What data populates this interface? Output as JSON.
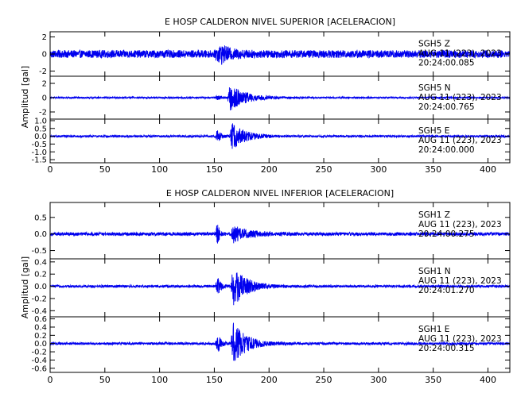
{
  "chart_data": [
    {
      "type": "line",
      "title": "E HOSP CALDERON NIVEL SUPERIOR [ACELERACION]",
      "ylabel": "Amplitud [gal]",
      "x_ticks": [
        "0",
        "50",
        "100",
        "150",
        "200",
        "250",
        "300",
        "350",
        "400"
      ],
      "xlim": [
        0,
        420
      ],
      "series": [
        {
          "name": "SGH5 Z",
          "date": "AUG 11 (223), 2023",
          "time": "20:24:00.085",
          "ylim": [
            -2.6,
            2.6
          ],
          "y_ticks": [
            "2",
            "0",
            "-2"
          ],
          "noise": 0.45,
          "events": [
            {
              "t": 151,
              "amp": 2.4,
              "decay": 2,
              "dur": 4
            },
            {
              "t": 154,
              "amp": 0.9,
              "decay": 10,
              "dur": 30
            }
          ]
        },
        {
          "name": "SGH5 N",
          "date": "AUG 11 (223), 2023",
          "time": "20:24:00.765",
          "ylim": [
            -3,
            3
          ],
          "y_ticks": [
            "2",
            "0",
            "-2"
          ],
          "noise": 0.12,
          "events": [
            {
              "t": 151,
              "amp": 0.6,
              "decay": 3,
              "dur": 6
            },
            {
              "t": 162,
              "amp": 2.1,
              "decay": 14,
              "dur": 60
            }
          ]
        },
        {
          "name": "SGH5 E",
          "date": "AUG 11 (223), 2023",
          "time": "20:24:00.000",
          "ylim": [
            -1.7,
            1.1
          ],
          "y_ticks": [
            "1.0",
            "0.5",
            "0.0",
            "-0.5",
            "-1.0",
            "-1.5"
          ],
          "noise": 0.07,
          "events": [
            {
              "t": 151,
              "amp": 0.8,
              "decay": 3,
              "dur": 6
            },
            {
              "t": 164,
              "amp": 1.0,
              "decay": 12,
              "dur": 50
            }
          ]
        }
      ]
    },
    {
      "type": "line",
      "title": "E HOSP CALDERON NIVEL INFERIOR [ACELERACION]",
      "ylabel": "Amplitud [gal]",
      "x_ticks": [
        "0",
        "50",
        "100",
        "150",
        "200",
        "250",
        "300",
        "350",
        "400"
      ],
      "xlim": [
        0,
        420
      ],
      "series": [
        {
          "name": "SGH1 Z",
          "date": "AUG 11 (223), 2023",
          "time": "20:24:00.275",
          "ylim": [
            -0.75,
            0.95
          ],
          "y_ticks": [
            "0.5",
            "0.0",
            "-0.5"
          ],
          "noise": 0.05,
          "events": [
            {
              "t": 151,
              "amp": 0.8,
              "decay": 2,
              "dur": 5
            },
            {
              "t": 165,
              "amp": 0.28,
              "decay": 14,
              "dur": 50
            }
          ]
        },
        {
          "name": "SGH1 N",
          "date": "AUG 11 (223), 2023",
          "time": "20:24:01.270",
          "ylim": [
            -0.5,
            0.45
          ],
          "y_ticks": [
            "0.4",
            "0.2",
            "0.0",
            "-0.2",
            "-0.4"
          ],
          "noise": 0.02,
          "events": [
            {
              "t": 151,
              "amp": 0.3,
              "decay": 3,
              "dur": 6
            },
            {
              "t": 165,
              "amp": 0.4,
              "decay": 12,
              "dur": 50
            }
          ]
        },
        {
          "name": "SGH1 E",
          "date": "AUG 11 (223), 2023",
          "time": "20:24:00.315",
          "ylim": [
            -0.7,
            0.65
          ],
          "y_ticks": [
            "0.6",
            "0.4",
            "0.2",
            "0.0",
            "-0.2",
            "-0.4",
            "-0.6"
          ],
          "noise": 0.03,
          "events": [
            {
              "t": 151,
              "amp": 0.45,
              "decay": 3,
              "dur": 6
            },
            {
              "t": 165,
              "amp": 0.6,
              "decay": 12,
              "dur": 50
            }
          ]
        }
      ]
    }
  ]
}
